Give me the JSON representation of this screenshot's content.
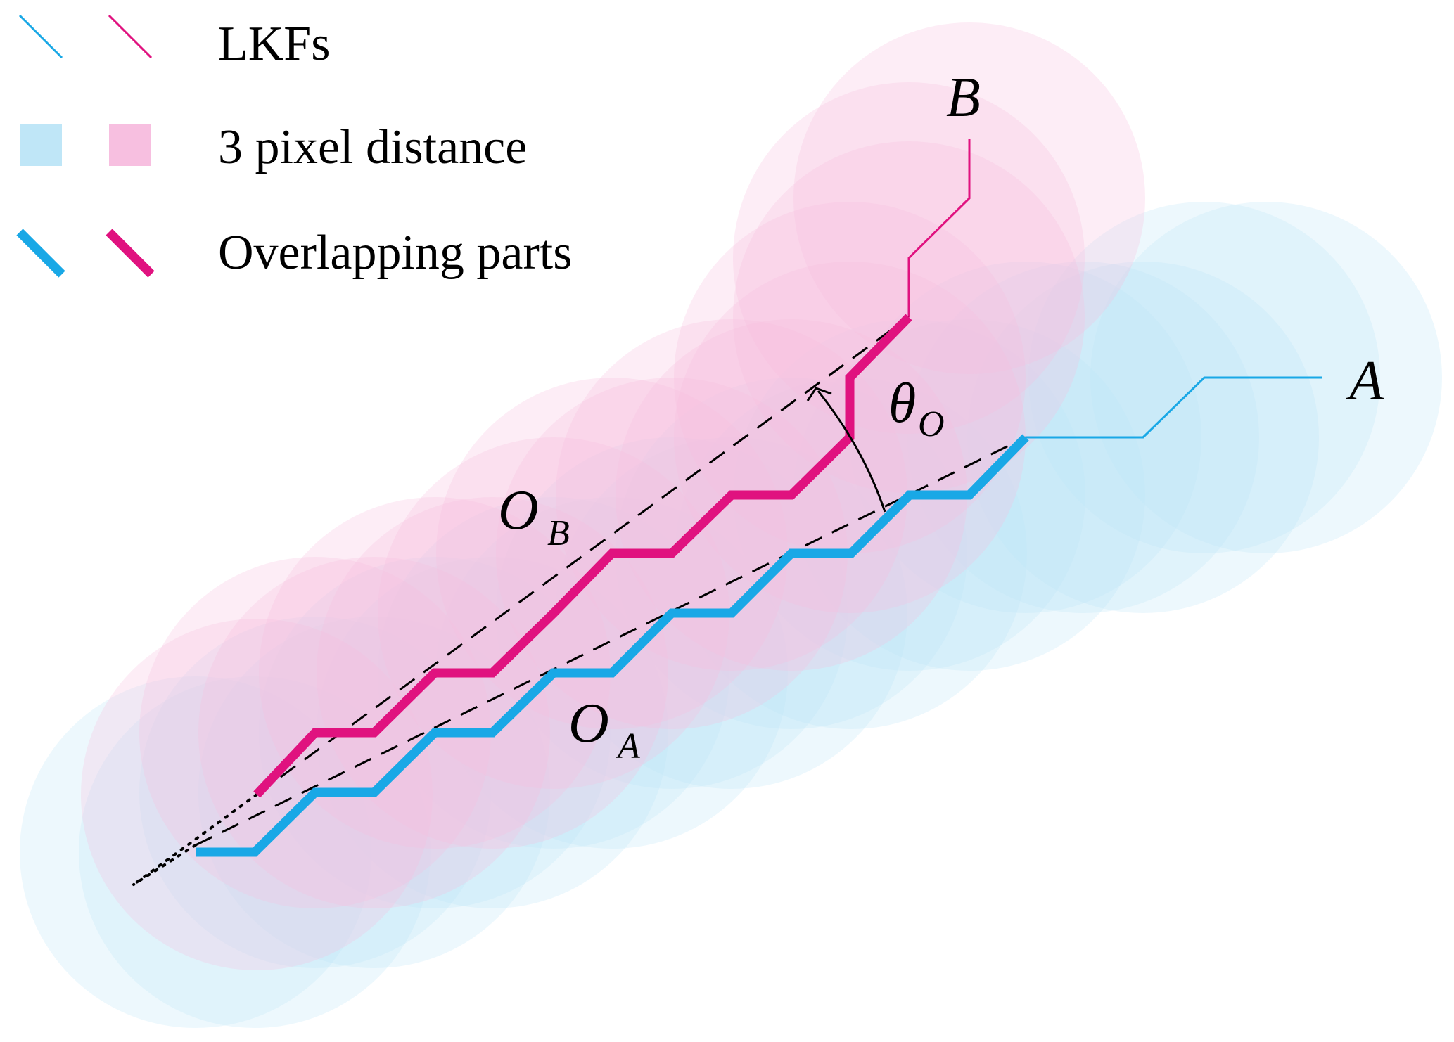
{
  "legend": {
    "lkf_label": "LKFs",
    "distance_label": "3  pixel distance",
    "overlap_label": "Overlapping parts"
  },
  "labels": {
    "line_a": "A",
    "line_b": "B",
    "overlap_a_main": "O",
    "overlap_a_sub": "A",
    "overlap_b_main": "O",
    "overlap_b_sub": "B",
    "angle_main": "θ",
    "angle_sub": "O"
  },
  "colors": {
    "line_a": "#19a8e6",
    "line_b": "#e0127f",
    "region_a": "#bfe6f7",
    "region_b": "#f7bfe0",
    "guide": "#000000"
  }
}
